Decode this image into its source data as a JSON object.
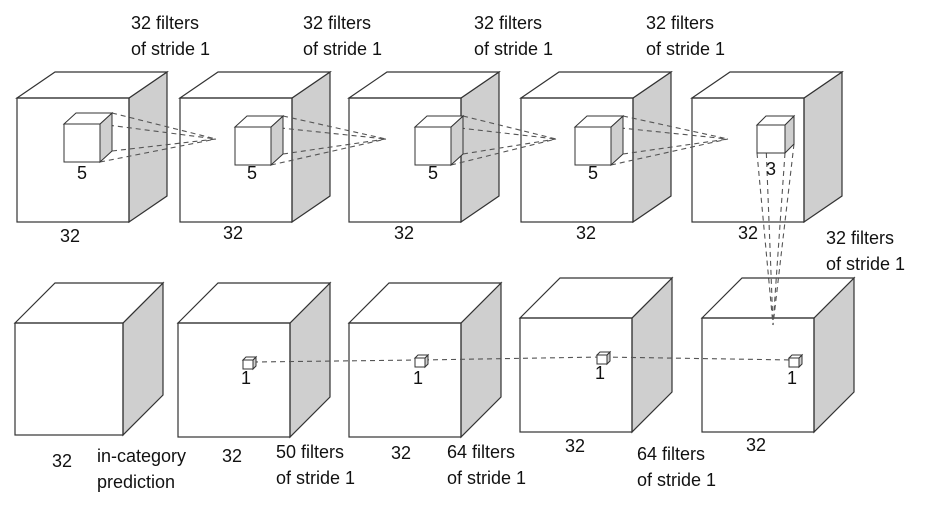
{
  "top_row": {
    "filter_labels": [
      {
        "line1": "32 filters",
        "line2": "of stride 1"
      },
      {
        "line1": "32 filters",
        "line2": "of stride 1"
      },
      {
        "line1": "32 filters",
        "line2": "of stride 1"
      },
      {
        "line1": "32 filters",
        "line2": "of stride 1"
      }
    ],
    "kernel_sizes": [
      "5",
      "5",
      "5",
      "5",
      "3"
    ],
    "dims": [
      "32",
      "32",
      "32",
      "32",
      "32"
    ]
  },
  "side_label": {
    "line1": "32 filters",
    "line2": "of stride 1"
  },
  "bottom_row": {
    "kernel_sizes": [
      "1",
      "1",
      "1",
      "1"
    ],
    "dims": [
      "32",
      "32",
      "32",
      "32",
      "32"
    ],
    "prediction_label": {
      "line1": "in-category",
      "line2": "prediction"
    },
    "filter_labels": [
      {
        "line1": "50 filters",
        "line2": "of stride 1"
      },
      {
        "line1": "64 filters",
        "line2": "of stride 1"
      },
      {
        "line1": "64 filters",
        "line2": "of stride 1"
      }
    ]
  },
  "colors": {
    "cube_front": "#ffffff",
    "cube_side": "#cfcfcf",
    "cube_top": "#ffffff",
    "edge": "#333333",
    "dash": "#555555",
    "input_voxels": "#a8a8a8",
    "pred_body": "#a4e02a",
    "pred_wing": "#5e1a6e",
    "pred_tail": "#b57ac9",
    "pred_engine": "#e8dcc0"
  }
}
